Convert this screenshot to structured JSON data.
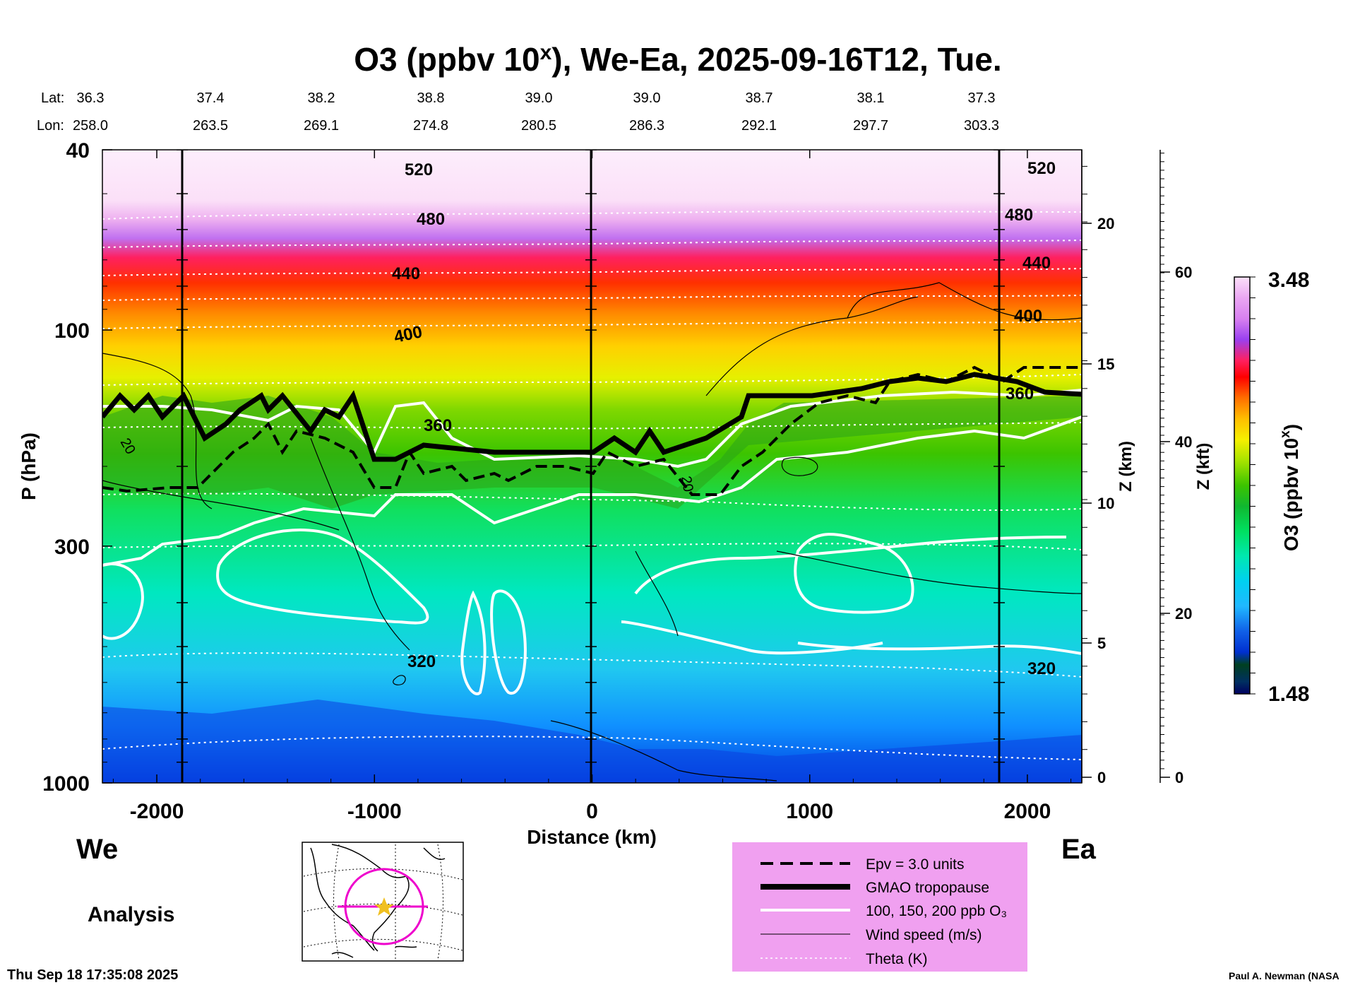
{
  "chart_data": {
    "type": "contour-cross-section",
    "title_main": "O3 (ppbv 10",
    "title_sup": "x",
    "title_rest": "), We-Ea, 2025-09-16T12, Tue.",
    "lat_label": "Lat:",
    "lon_label": "Lon:",
    "lat": [
      "36.3",
      "37.4",
      "38.2",
      "38.8",
      "39.0",
      "39.0",
      "38.7",
      "38.1",
      "37.3"
    ],
    "lon": [
      "258.0",
      "263.5",
      "269.1",
      "274.8",
      "280.5",
      "286.3",
      "292.1",
      "297.7",
      "303.3"
    ],
    "xlabel": "Distance (km)",
    "xlim": [
      -2250,
      2250
    ],
    "x_ticks": [
      -2000,
      -1000,
      0,
      1000,
      2000
    ],
    "x_tick_labels": [
      "-2000",
      "-1000",
      "0",
      "1000",
      "2000"
    ],
    "ylabel": "P (hPa)",
    "ylim": [
      1000,
      40
    ],
    "y_ticks": [
      40,
      100,
      300,
      1000
    ],
    "y_tick_labels": [
      "40",
      "100",
      "300",
      "1000"
    ],
    "z_km_label": "Z (km)",
    "z_km_ticks": [
      "0",
      "5",
      "10",
      "15",
      "20"
    ],
    "z_kft_label": "Z (kft)",
    "z_kft_ticks": [
      "0",
      "20",
      "40",
      "60"
    ],
    "colorbar": {
      "label_main": "O3 (ppbv 10",
      "label_sup": "x",
      "label_end": ")",
      "max": "3.48",
      "min": "1.48",
      "colors": [
        "#ffe6fb",
        "#f7c8f5",
        "#eaa6f2",
        "#d880f0",
        "#b860f0",
        "#9a40f0",
        "#ff2060",
        "#ff0000",
        "#ff3c00",
        "#ff6e00",
        "#ff9800",
        "#ffbe00",
        "#ffe000",
        "#f6f000",
        "#d8ef00",
        "#a8e400",
        "#70d400",
        "#3cc400",
        "#1a8a10",
        "#10b830",
        "#00e060",
        "#00e8b0",
        "#00e0d8",
        "#00d0f0",
        "#20b8ff",
        "#1090ff",
        "#1060e8",
        "#0030d0",
        "#004020",
        "#003060",
        "#000060"
      ]
    },
    "theta_labels": [
      "520",
      "480",
      "440",
      "400",
      "360",
      "320"
    ],
    "wind_labels": [
      "20"
    ],
    "direction_left": "We",
    "direction_right": "Ea",
    "analysis_label": "Analysis",
    "timestamp": "Thu Sep 18 17:35:08 2025",
    "credit": "Paul A. Newman (NASA",
    "legend": [
      {
        "label": "Epv = 3.0 units",
        "style": "dashed-black"
      },
      {
        "label": "GMAO tropopause",
        "style": "thick-black"
      },
      {
        "label": "100, 150, 200 ppb O₃",
        "style": "white"
      },
      {
        "label": "Wind speed (m/s)",
        "style": "thin-black"
      },
      {
        "label": "Theta (K)",
        "style": "dotted-white"
      }
    ],
    "legend_bg": "#f0a0f0"
  }
}
